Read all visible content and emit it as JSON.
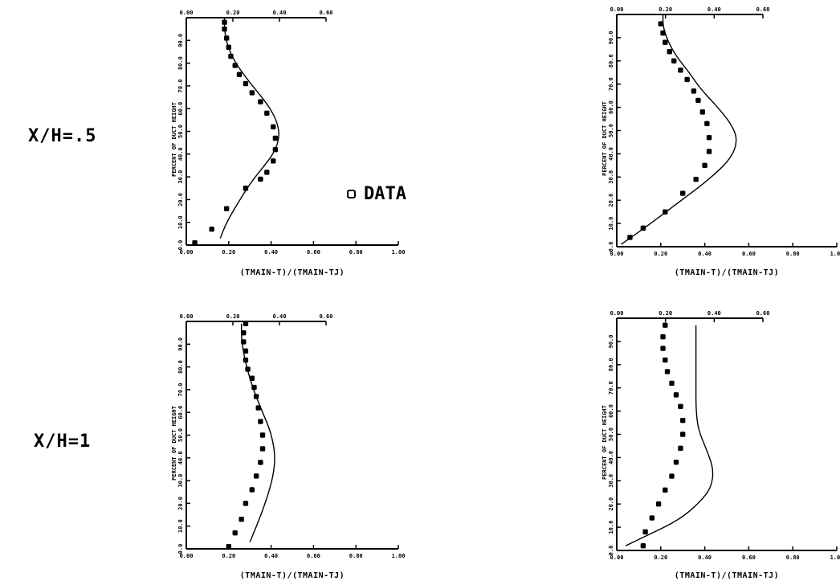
{
  "row_labels": [
    "X/H=.5",
    "X/H=1"
  ],
  "legend": {
    "label": "DATA",
    "marker": "open-square"
  },
  "chart_data": [
    {
      "type": "line",
      "panel": "x/h-0.5-left",
      "xlabel": "(TMAIN-T)/(TMAIN-TJ)",
      "ylabel": "PERCENT OF DUCT HEIGHT",
      "xlim": [
        0,
        1
      ],
      "ylim": [
        0,
        100
      ],
      "x_ticks": [
        "0.00",
        "0.20",
        "0.40",
        "0.60",
        "0.80",
        "1.00"
      ],
      "top_ticks": [
        "0.00",
        "0.20",
        "0.40",
        "0.60"
      ],
      "y_ticks": [
        "0.0",
        "10.0",
        "20.0",
        "30.0",
        "40.0",
        "50.0",
        "60.0",
        "70.0",
        "80.0",
        "90.0"
      ],
      "series": [
        {
          "name": "DATA",
          "style": "markers",
          "x": [
            0.04,
            0.12,
            0.19,
            0.28,
            0.35,
            0.38,
            0.41,
            0.42,
            0.42,
            0.41,
            0.38,
            0.35,
            0.31,
            0.28,
            0.25,
            0.23,
            0.21,
            0.2,
            0.19,
            0.18,
            0.18
          ],
          "y": [
            1,
            7,
            16,
            25,
            29,
            32,
            37,
            42,
            47,
            52,
            58,
            63,
            67,
            71,
            75,
            79,
            83,
            87,
            91,
            95,
            98
          ]
        },
        {
          "name": "",
          "style": "line",
          "x": [
            0.16,
            0.19,
            0.24,
            0.3,
            0.36,
            0.41,
            0.44,
            0.43,
            0.39,
            0.33,
            0.27,
            0.22,
            0.19,
            0.18,
            0.18
          ],
          "y": [
            3,
            10,
            18,
            27,
            34,
            40,
            47,
            54,
            61,
            68,
            75,
            82,
            89,
            95,
            100
          ]
        }
      ]
    },
    {
      "type": "line",
      "panel": "x/h-0.5-right",
      "xlabel": "(TMAIN-T)/(TMAIN-TJ)",
      "ylabel": "PERCENT OF DUCT HEIGHT",
      "xlim": [
        0,
        1
      ],
      "ylim": [
        0,
        100
      ],
      "x_ticks": [
        "0.00",
        "0.20",
        "0.40",
        "0.60",
        "0.80",
        "1.00"
      ],
      "top_ticks": [
        "0.00",
        "0.20",
        "0.40",
        "0.60"
      ],
      "y_ticks": [
        "0.0",
        "10.0",
        "20.0",
        "30.0",
        "40.0",
        "50.0",
        "60.0",
        "70.0",
        "80.0",
        "90.0"
      ],
      "series": [
        {
          "name": "DATA",
          "style": "markers",
          "x": [
            0.06,
            0.12,
            0.22,
            0.3,
            0.36,
            0.4,
            0.42,
            0.42,
            0.41,
            0.39,
            0.37,
            0.35,
            0.32,
            0.29,
            0.26,
            0.24,
            0.22,
            0.21,
            0.2
          ],
          "y": [
            4,
            8,
            15,
            23,
            29,
            35,
            41,
            47,
            53,
            58,
            63,
            67,
            72,
            76,
            80,
            84,
            88,
            92,
            96
          ]
        },
        {
          "name": "",
          "style": "line",
          "x": [
            0.02,
            0.14,
            0.28,
            0.42,
            0.52,
            0.55,
            0.52,
            0.45,
            0.38,
            0.33,
            0.27,
            0.23,
            0.21,
            0.21
          ],
          "y": [
            1,
            9,
            19,
            29,
            38,
            46,
            53,
            61,
            68,
            75,
            82,
            89,
            95,
            100
          ]
        }
      ]
    },
    {
      "type": "line",
      "panel": "x/h-1-left",
      "xlabel": "(TMAIN-T)/(TMAIN-TJ)",
      "ylabel": "PERCENT OF DUCT HEIGHT",
      "xlim": [
        0,
        1
      ],
      "ylim": [
        0,
        100
      ],
      "x_ticks": [
        "0.00",
        "0.20",
        "0.40",
        "0.60",
        "0.80",
        "1.00"
      ],
      "top_ticks": [
        "0.00",
        "0.20",
        "0.40",
        "0.60"
      ],
      "y_ticks": [
        "0.0",
        "10.0",
        "20.0",
        "30.0",
        "40.0",
        "50.0",
        "60.0",
        "70.0",
        "80.0",
        "90.0"
      ],
      "series": [
        {
          "name": "DATA",
          "style": "markers",
          "x": [
            0.2,
            0.23,
            0.26,
            0.28,
            0.31,
            0.33,
            0.35,
            0.36,
            0.36,
            0.35,
            0.34,
            0.33,
            0.32,
            0.31,
            0.29,
            0.28,
            0.28,
            0.27,
            0.27,
            0.28
          ],
          "y": [
            1,
            7,
            13,
            20,
            26,
            32,
            38,
            44,
            50,
            56,
            62,
            67,
            71,
            75,
            79,
            83,
            87,
            91,
            95,
            99
          ]
        },
        {
          "name": "",
          "style": "line",
          "x": [
            0.3,
            0.34,
            0.38,
            0.41,
            0.42,
            0.4,
            0.36,
            0.32,
            0.29,
            0.27,
            0.26,
            0.26
          ],
          "y": [
            3,
            12,
            22,
            32,
            41,
            51,
            60,
            69,
            78,
            86,
            93,
            99
          ]
        }
      ]
    },
    {
      "type": "line",
      "panel": "x/h-1-right",
      "xlabel": "(TMAIN-T)/(TMAIN-TJ)",
      "ylabel": "PERCENT OF DUCT HEIGHT",
      "xlim": [
        0,
        1
      ],
      "ylim": [
        0,
        100
      ],
      "x_ticks": [
        "0.00",
        "0.20",
        "0.40",
        "0.60",
        "0.80",
        "1.00"
      ],
      "top_ticks": [
        "0.00",
        "0.20",
        "0.40",
        "0.60"
      ],
      "y_ticks": [
        "0.0",
        "10.0",
        "20.0",
        "30.0",
        "40.0",
        "50.0",
        "60.0",
        "70.0",
        "80.0",
        "90.0"
      ],
      "series": [
        {
          "name": "DATA",
          "style": "markers",
          "x": [
            0.12,
            0.13,
            0.16,
            0.19,
            0.22,
            0.25,
            0.27,
            0.29,
            0.3,
            0.3,
            0.29,
            0.27,
            0.25,
            0.23,
            0.22,
            0.21,
            0.21,
            0.22
          ],
          "y": [
            2,
            8,
            14,
            20,
            26,
            32,
            38,
            44,
            50,
            56,
            62,
            67,
            72,
            77,
            82,
            87,
            92,
            97
          ]
        },
        {
          "name": "",
          "style": "line",
          "x": [
            0.04,
            0.15,
            0.28,
            0.37,
            0.43,
            0.44,
            0.41,
            0.37,
            0.36,
            0.36,
            0.36,
            0.36,
            0.36
          ],
          "y": [
            2,
            7,
            13,
            20,
            27,
            35,
            43,
            52,
            61,
            70,
            79,
            88,
            97
          ]
        }
      ]
    }
  ]
}
